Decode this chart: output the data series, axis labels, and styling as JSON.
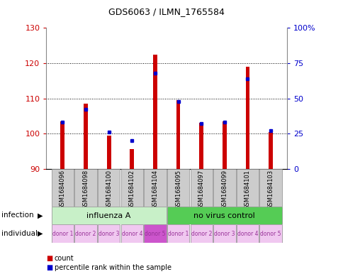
{
  "title": "GDS6063 / ILMN_1765584",
  "samples": [
    "GSM1684096",
    "GSM1684098",
    "GSM1684100",
    "GSM1684102",
    "GSM1684104",
    "GSM1684095",
    "GSM1684097",
    "GSM1684099",
    "GSM1684101",
    "GSM1684103"
  ],
  "counts": [
    103.5,
    108.5,
    99.5,
    95.5,
    122.5,
    109.5,
    103.0,
    103.5,
    119.0,
    100.5
  ],
  "percentiles": [
    33,
    42,
    26,
    20,
    68,
    48,
    32,
    33,
    64,
    27
  ],
  "ylim_left": [
    90,
    130
  ],
  "ylim_right": [
    0,
    100
  ],
  "yticks_left": [
    90,
    100,
    110,
    120,
    130
  ],
  "yticks_right": [
    0,
    25,
    50,
    75,
    100
  ],
  "infection_groups": [
    {
      "label": "influenza A",
      "start": 0,
      "end": 4,
      "color": "#c8f0c8"
    },
    {
      "label": "no virus control",
      "start": 5,
      "end": 9,
      "color": "#55cc55"
    }
  ],
  "individuals": [
    "donor 1",
    "donor 2",
    "donor 3",
    "donor 4",
    "donor 5",
    "donor 1",
    "donor 2",
    "donor 3",
    "donor 4",
    "donor 5"
  ],
  "individual_colors": [
    "#f0c8f0",
    "#f0c8f0",
    "#f0c8f0",
    "#f0c8f0",
    "#cc55cc",
    "#f0c8f0",
    "#f0c8f0",
    "#f0c8f0",
    "#f0c8f0",
    "#f0c8f0"
  ],
  "bar_color": "#cc0000",
  "percentile_color": "#0000cc",
  "bar_bottom": 90,
  "sample_box_color": "#cccccc",
  "sample_box_edge": "#888888"
}
